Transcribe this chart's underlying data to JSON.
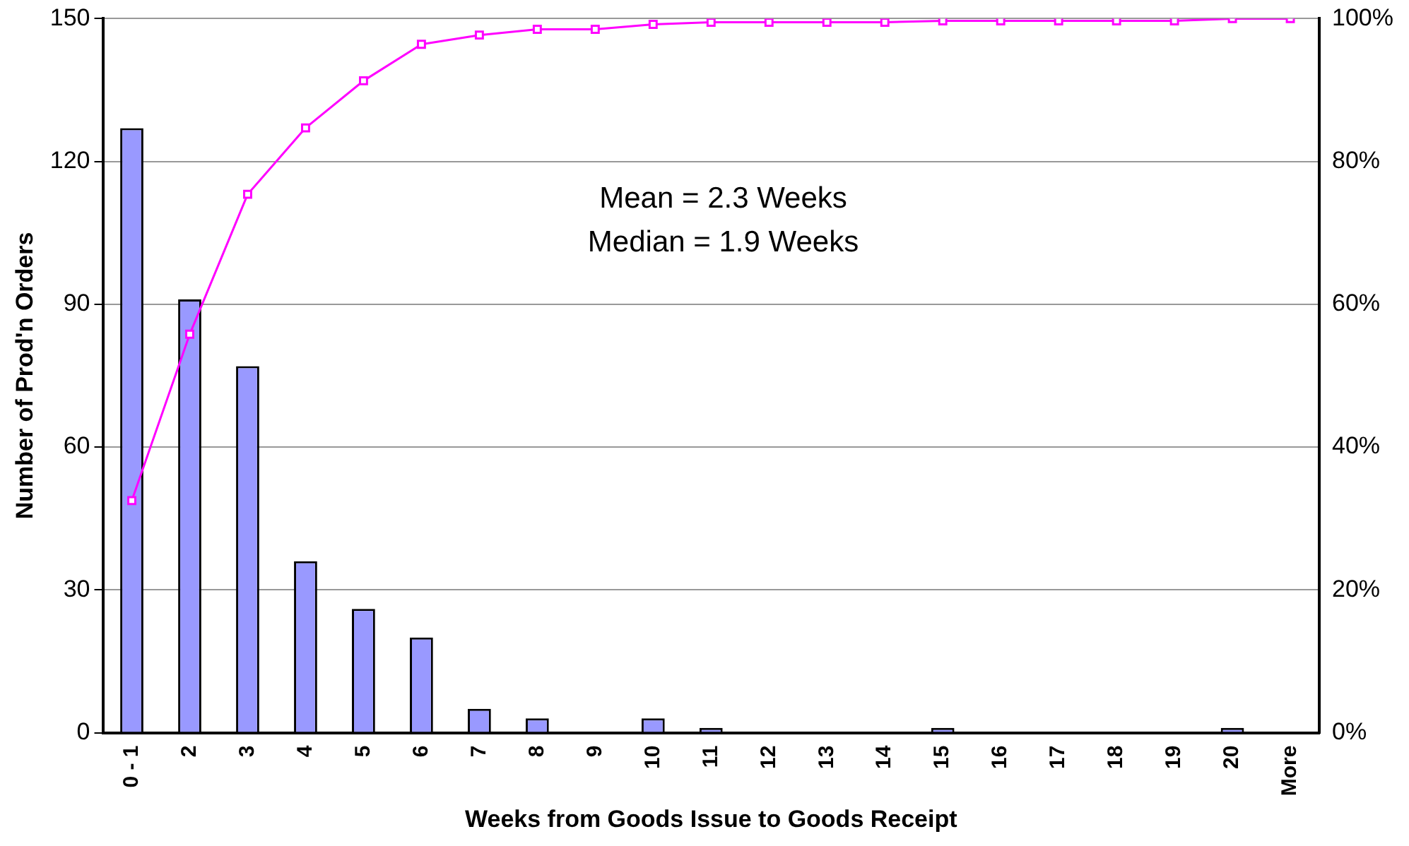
{
  "chart_data": {
    "type": "bar",
    "xlabel": "Weeks from Goods Issue to Goods Receipt",
    "ylabel": "Number of Prod'n Orders",
    "categories": [
      "0 - 1",
      "2",
      "3",
      "4",
      "5",
      "6",
      "7",
      "8",
      "9",
      "10",
      "11",
      "12",
      "13",
      "14",
      "15",
      "16",
      "17",
      "18",
      "19",
      "20",
      "More"
    ],
    "series": [
      {
        "color": "#9999ff",
        "values": [
          127,
          91,
          77,
          36,
          26,
          20,
          5,
          3,
          0,
          3,
          1,
          0,
          0,
          0,
          1,
          0,
          0,
          0,
          0,
          1,
          0
        ]
      },
      {
        "type": "line",
        "axis": "y2",
        "color": "#ff00ff",
        "marker": "square",
        "values": [
          32.5,
          55.8,
          75.4,
          84.7,
          91.3,
          96.4,
          97.7,
          98.5,
          98.5,
          99.2,
          99.5,
          99.5,
          99.5,
          99.5,
          99.7,
          99.7,
          99.7,
          99.7,
          99.7,
          100,
          100
        ]
      }
    ],
    "ylim": [
      0,
      150
    ],
    "yticks": [
      0,
      30,
      60,
      90,
      120,
      150
    ],
    "y2lim": [
      0,
      100
    ],
    "y2ticks": [
      {
        "value": 0,
        "label": "0%"
      },
      {
        "value": 20,
        "label": "20%"
      },
      {
        "value": 40,
        "label": "40%"
      },
      {
        "value": 60,
        "label": "60%"
      },
      {
        "value": 80,
        "label": "80%"
      },
      {
        "value": 100,
        "label": "100%"
      }
    ],
    "grid": "y",
    "legend": false,
    "annotations": [
      "Mean = 2.3 Weeks",
      "Median = 1.9 Weeks"
    ]
  }
}
